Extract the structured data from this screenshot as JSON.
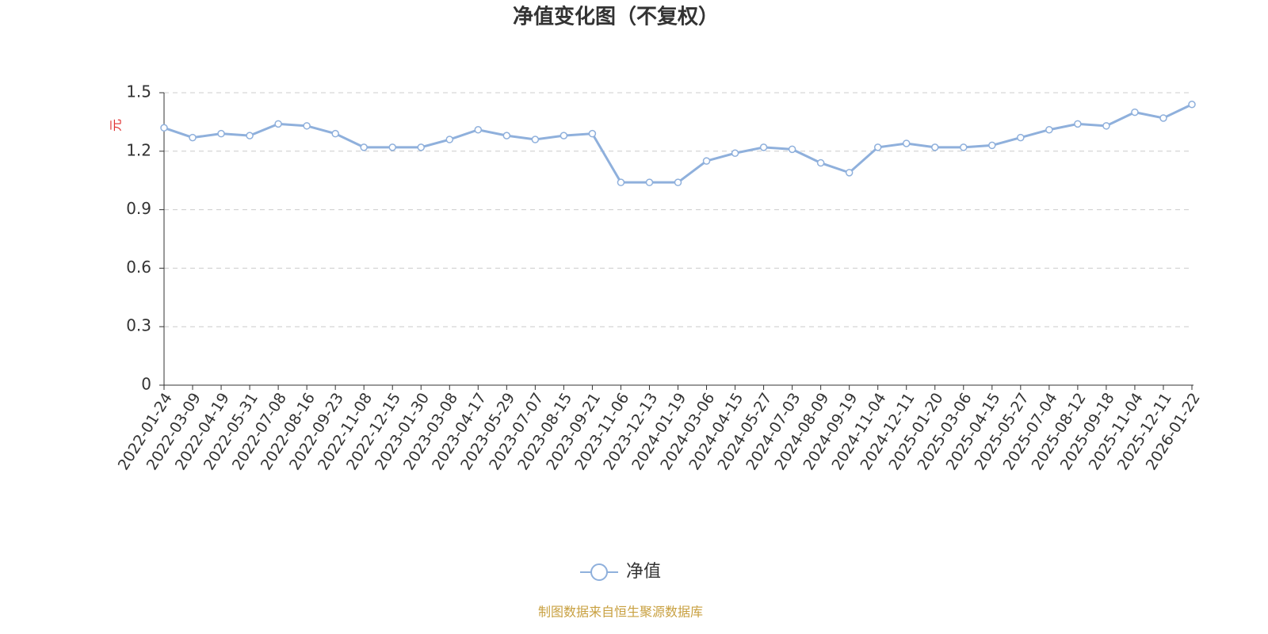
{
  "chart_data": {
    "type": "line",
    "title": "净值变化图（不复权）",
    "y_label": "元",
    "source": "制图数据来自恒生聚源数据库",
    "categories": [
      "2022-01-24",
      "2022-03-09",
      "2022-04-19",
      "2022-05-31",
      "2022-07-08",
      "2022-08-16",
      "2022-09-23",
      "2022-11-08",
      "2022-12-15",
      "2023-01-30",
      "2023-03-08",
      "2023-04-17",
      "2023-05-29",
      "2023-07-07",
      "2023-08-15",
      "2023-09-21",
      "2023-11-06",
      "2023-12-13",
      "2024-01-19",
      "2024-03-06",
      "2024-04-15",
      "2024-05-27",
      "2024-07-03",
      "2024-08-09",
      "2024-09-19",
      "2024-11-04",
      "2024-12-11",
      "2025-01-20",
      "2025-03-06",
      "2025-04-15",
      "2025-05-27",
      "2025-07-04",
      "2025-08-12",
      "2025-09-18",
      "2025-11-04",
      "2025-12-11",
      "2026-01-22"
    ],
    "series": [
      {
        "name": "净值",
        "color": "#8fb0dc",
        "values": [
          1.32,
          1.27,
          1.29,
          1.28,
          1.34,
          1.33,
          1.29,
          1.22,
          1.22,
          1.22,
          1.26,
          1.31,
          1.28,
          1.26,
          1.28,
          1.29,
          1.04,
          1.04,
          1.04,
          1.15,
          1.19,
          1.22,
          1.21,
          1.14,
          1.09,
          1.22,
          1.24,
          1.22,
          1.22,
          1.23,
          1.27,
          1.31,
          1.34,
          1.33,
          1.4,
          1.37,
          1.44
        ]
      }
    ],
    "ylim": [
      0,
      1.5
    ],
    "yticks": [
      0,
      0.3,
      0.6,
      0.9,
      1.2,
      1.5
    ],
    "grid": true,
    "legend": "bottom"
  }
}
